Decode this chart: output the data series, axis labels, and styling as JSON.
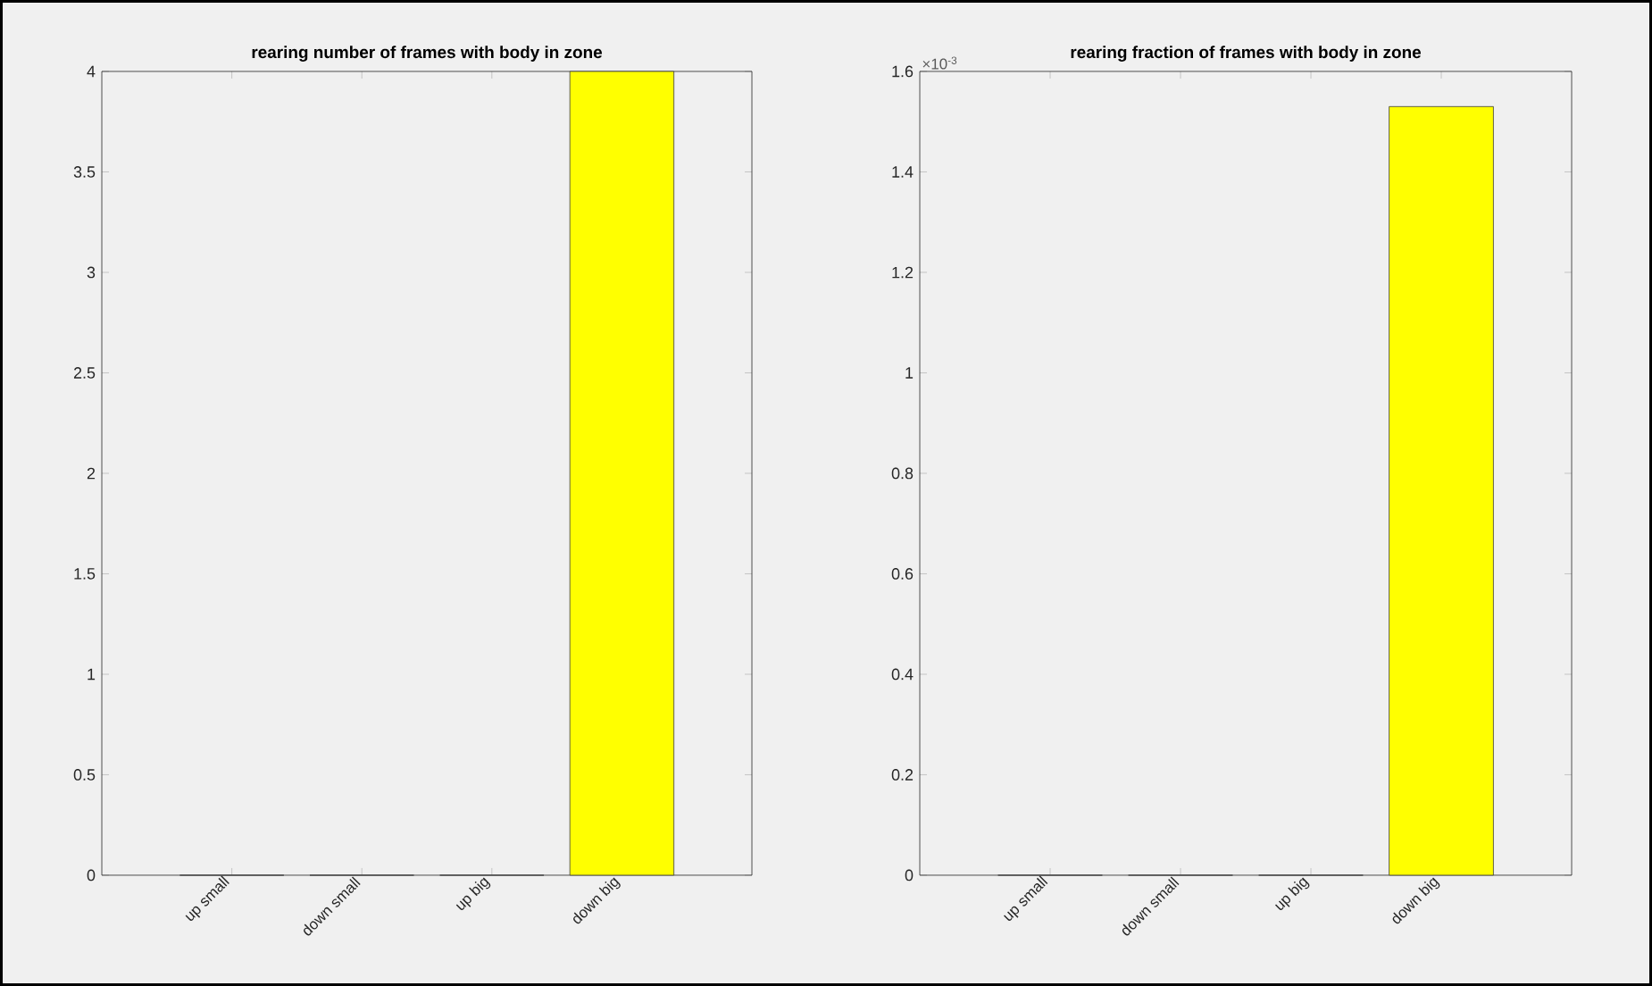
{
  "chart_data": [
    {
      "type": "bar",
      "title": "rearing number of frames with body in zone",
      "categories": [
        "up small",
        "down small",
        "up big",
        "down big"
      ],
      "values": [
        0,
        0,
        0,
        4
      ],
      "color": "#ffff00",
      "ylim": [
        0,
        4
      ],
      "yticks": [
        0,
        0.5,
        1,
        1.5,
        2,
        2.5,
        3,
        3.5,
        4
      ]
    },
    {
      "type": "bar",
      "title": "rearing fraction of frames with body in zone",
      "categories": [
        "up small",
        "down small",
        "up big",
        "down big"
      ],
      "values": [
        0,
        0,
        0,
        1.53
      ],
      "color": "#ffff00",
      "ylim": [
        0,
        1.6
      ],
      "yticks": [
        0,
        0.2,
        0.4,
        0.6,
        0.8,
        1,
        1.2,
        1.4,
        1.6
      ],
      "annotations": [
        "×10$^{-3}$"
      ]
    }
  ]
}
